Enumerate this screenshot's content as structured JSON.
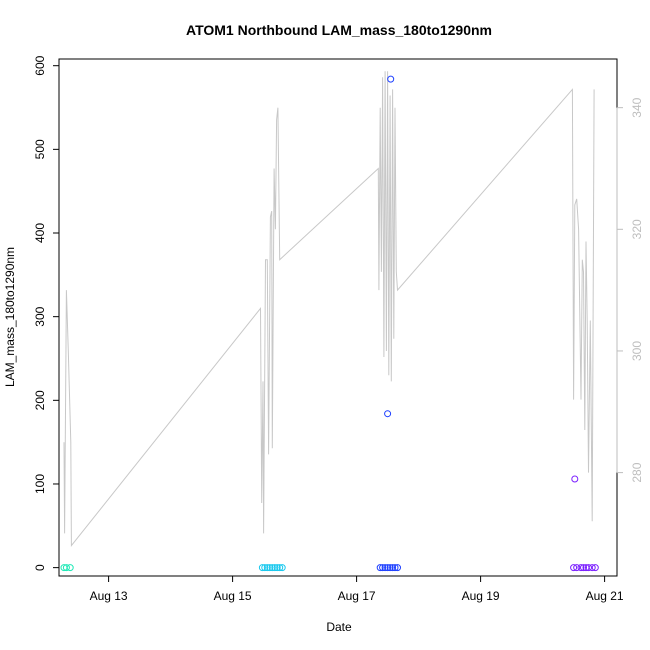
{
  "chart_data": {
    "type": "scatter",
    "title": "ATOM1 Northbound LAM_mass_180to1290nm",
    "xlabel": "Date",
    "ylabel": "LAM_mass_180to1290nm",
    "ylim": [
      -10,
      608
    ],
    "y2lim": [
      263,
      348
    ],
    "xlim_days": [
      12.2,
      21.2
    ],
    "x_ticks": [
      {
        "label": "Aug 13",
        "day": 13
      },
      {
        "label": "Aug 15",
        "day": 15
      },
      {
        "label": "Aug 17",
        "day": 17
      },
      {
        "label": "Aug 19",
        "day": 19
      },
      {
        "label": "Aug 21",
        "day": 21
      }
    ],
    "y_ticks": [
      0,
      100,
      200,
      300,
      400,
      500,
      600
    ],
    "y2_ticks": [
      280,
      300,
      320,
      340
    ],
    "grid": false,
    "legend": "none",
    "colors": {
      "aug12": "#1de9b6",
      "aug15": "#18c8ee",
      "aug17": "#1e40ff",
      "aug20": "#7b1fff",
      "line": "#c8c8c8",
      "right_axis": "#bebebe"
    },
    "series": [
      {
        "color_key": "aug12",
        "points": [
          [
            12.28,
            0
          ],
          [
            12.32,
            0
          ],
          [
            12.38,
            0
          ]
        ]
      },
      {
        "color_key": "aug15",
        "points": [
          [
            15.48,
            0
          ],
          [
            15.52,
            0
          ],
          [
            15.56,
            0
          ],
          [
            15.6,
            0
          ],
          [
            15.64,
            0
          ],
          [
            15.68,
            0
          ],
          [
            15.72,
            0
          ],
          [
            15.76,
            0
          ],
          [
            15.8,
            0
          ]
        ]
      },
      {
        "color_key": "aug17",
        "points": [
          [
            17.38,
            0
          ],
          [
            17.42,
            0
          ],
          [
            17.46,
            0
          ],
          [
            17.5,
            0
          ],
          [
            17.54,
            0
          ],
          [
            17.58,
            0
          ],
          [
            17.62,
            0
          ],
          [
            17.66,
            0
          ],
          [
            17.5,
            184
          ],
          [
            17.55,
            584
          ]
        ]
      },
      {
        "color_key": "aug20",
        "points": [
          [
            20.5,
            0
          ],
          [
            20.55,
            0
          ],
          [
            20.62,
            0
          ],
          [
            20.66,
            0
          ],
          [
            20.7,
            0
          ],
          [
            20.74,
            0
          ],
          [
            20.8,
            0
          ],
          [
            20.85,
            0
          ],
          [
            20.52,
            106
          ]
        ]
      }
    ],
    "line_series": {
      "axis": "right",
      "points": [
        [
          12.28,
          285
        ],
        [
          12.29,
          270
        ],
        [
          12.32,
          310
        ],
        [
          12.35,
          300
        ],
        [
          12.39,
          285
        ],
        [
          12.4,
          268
        ],
        [
          15.45,
          307
        ],
        [
          15.47,
          275
        ],
        [
          15.49,
          295
        ],
        [
          15.5,
          270
        ],
        [
          15.53,
          315
        ],
        [
          15.56,
          315
        ],
        [
          15.58,
          283
        ],
        [
          15.61,
          322
        ],
        [
          15.63,
          323
        ],
        [
          15.64,
          284
        ],
        [
          15.67,
          330
        ],
        [
          15.69,
          320
        ],
        [
          15.71,
          338
        ],
        [
          15.73,
          340
        ],
        [
          15.76,
          315
        ],
        [
          17.35,
          330
        ],
        [
          17.36,
          310
        ],
        [
          17.38,
          340
        ],
        [
          17.4,
          313
        ],
        [
          17.42,
          345
        ],
        [
          17.44,
          299
        ],
        [
          17.46,
          346
        ],
        [
          17.48,
          300
        ],
        [
          17.5,
          346
        ],
        [
          17.52,
          296
        ],
        [
          17.54,
          342
        ],
        [
          17.56,
          295
        ],
        [
          17.58,
          343
        ],
        [
          17.6,
          302
        ],
        [
          17.62,
          340
        ],
        [
          17.64,
          313
        ],
        [
          17.66,
          310
        ],
        [
          20.48,
          343
        ],
        [
          20.5,
          292
        ],
        [
          20.52,
          324
        ],
        [
          20.55,
          325
        ],
        [
          20.58,
          320
        ],
        [
          20.62,
          292
        ],
        [
          20.64,
          315
        ],
        [
          20.66,
          313
        ],
        [
          20.68,
          287
        ],
        [
          20.7,
          318
        ],
        [
          20.72,
          305
        ],
        [
          20.74,
          280
        ],
        [
          20.77,
          305
        ],
        [
          20.8,
          272
        ],
        [
          20.83,
          343
        ]
      ]
    }
  }
}
